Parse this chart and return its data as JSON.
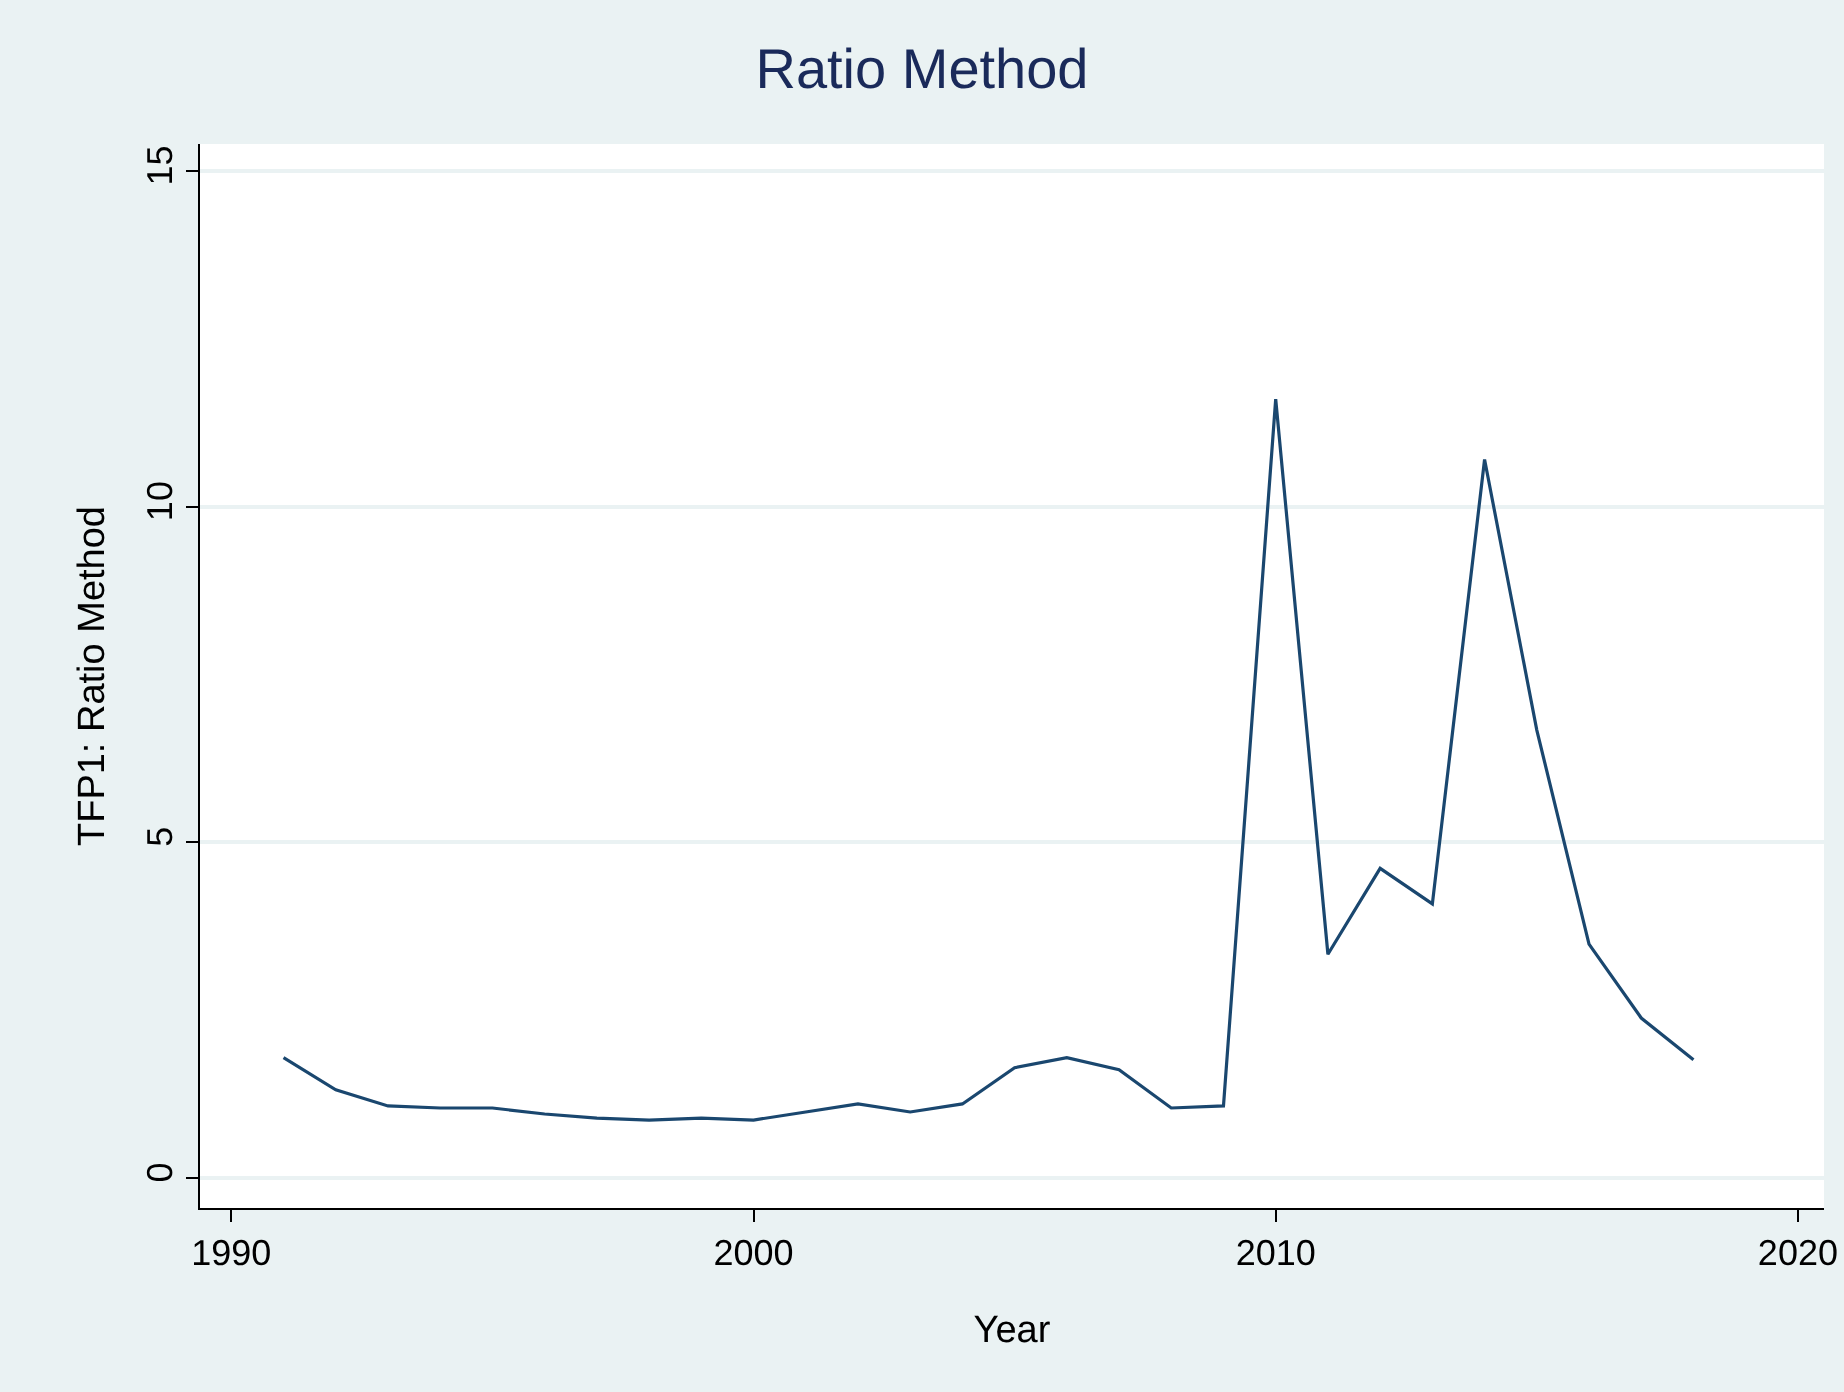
{
  "chart_data": {
    "type": "line",
    "title": "Ratio Method",
    "xlabel": "Year",
    "ylabel": "TFP1: Ratio Method",
    "x": [
      1991,
      1992,
      1993,
      1994,
      1995,
      1996,
      1997,
      1998,
      1999,
      2000,
      2001,
      2002,
      2003,
      2004,
      2005,
      2006,
      2007,
      2008,
      2009,
      2010,
      2011,
      2012,
      2013,
      2014,
      2015,
      2016,
      2017,
      2018
    ],
    "series": [
      {
        "color": "#1a476f",
        "values": [
          1.79,
          1.31,
          1.07,
          1.04,
          1.04,
          0.95,
          0.89,
          0.86,
          0.89,
          0.86,
          0.98,
          1.1,
          0.98,
          1.1,
          1.64,
          1.79,
          1.61,
          1.04,
          1.07,
          11.6,
          3.33,
          4.61,
          4.08,
          10.7,
          6.67,
          3.48,
          2.38,
          1.76
        ]
      }
    ],
    "xlim": [
      1989.4,
      2020.5
    ],
    "xticks": [
      1990,
      2000,
      2010,
      2020
    ],
    "ylim": [
      -0.45,
      15.4
    ],
    "yticks": [
      0,
      5,
      10,
      15
    ],
    "grid": "y",
    "marker": "none",
    "line_style": "solid"
  }
}
